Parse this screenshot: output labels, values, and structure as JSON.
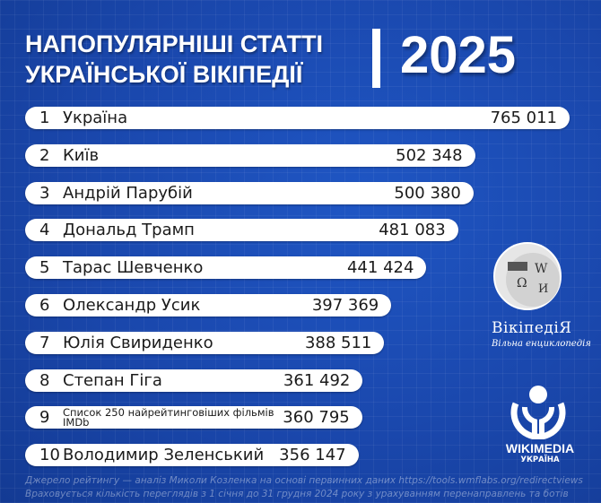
{
  "header": {
    "title_line1": "НАПОПУЛЯРНІШІ СТАТТІ",
    "title_line2": "УКРАЇНСЬКОЇ ВІКІПЕДІЇ",
    "year": "2025"
  },
  "chart_data": {
    "type": "bar",
    "orientation": "horizontal",
    "categories": [
      "Україна",
      "Київ",
      "Андрій Парубій",
      "Дональд Трамп",
      "Тарас Шевченко",
      "Олександр Усик",
      "Юлія Свириденко",
      "Степан Гіга",
      "Список 250 найрейтинговіших фільмів IMDb",
      "Володимир Зеленський"
    ],
    "ranks": [
      "1",
      "2",
      "3",
      "4",
      "5",
      "6",
      "7",
      "8",
      "9",
      "10"
    ],
    "values": [
      765011,
      502348,
      500380,
      481083,
      441424,
      397369,
      388511,
      361492,
      360795,
      356147
    ],
    "value_labels": [
      "765 011",
      "502 348",
      "500 380",
      "481 083",
      "441 424",
      "397 369",
      "388 511",
      "361 492",
      "360 795",
      "356 147"
    ],
    "bar_color": "#ffffff"
  },
  "logos": {
    "wikipedia_name": "ВікіпедіЯ",
    "wikipedia_tagline": "Вільна енциклопедія",
    "wikimedia_name": "WIKIMEDIA",
    "wikimedia_sub": "УКРАЇНА"
  },
  "footer": {
    "line1": "Джерело рейтингу — аналіз Миколи Козленка на основі первинних даних https://tools.wmflabs.org/redirectviews",
    "line2": "Враховується кількість переглядів з 1 січня до 31 грудня 2024 року з урахуванням перенаправлень та ботів"
  },
  "colors": {
    "background": "#1a47ac",
    "text": "#ffffff"
  }
}
